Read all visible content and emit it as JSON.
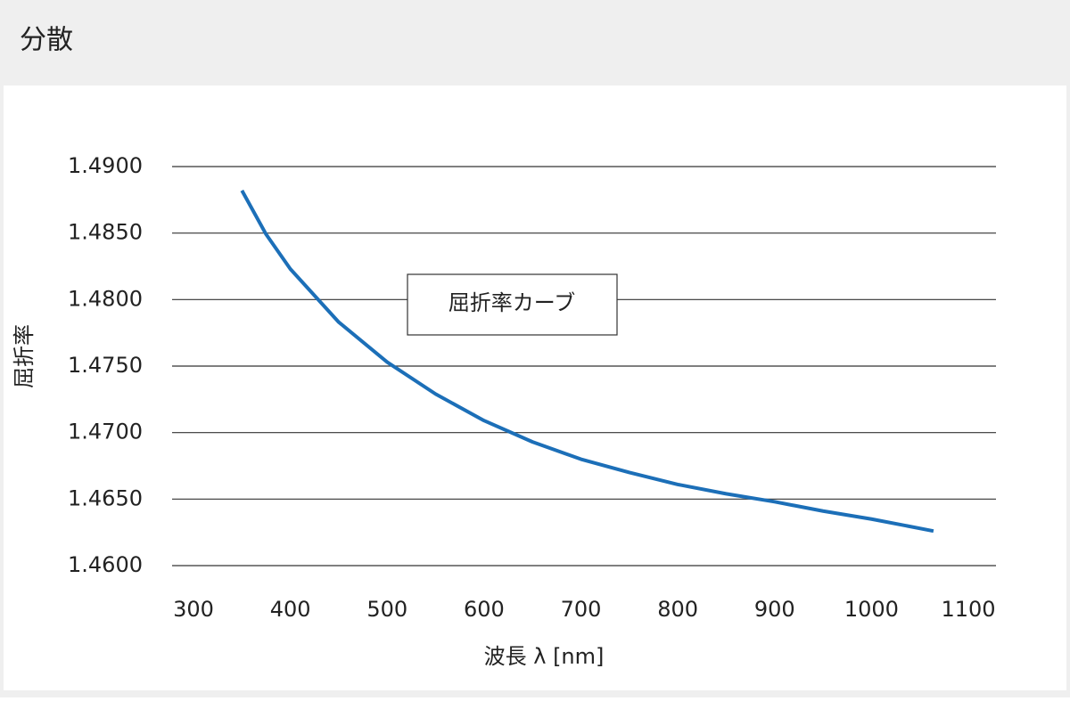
{
  "chart_data": {
    "type": "line",
    "title": "分散",
    "annotation": "屈折率カーブ",
    "x_label": "波長 λ [nm]",
    "y_label": "屈折率",
    "x": [
      350,
      375,
      400,
      450,
      500,
      550,
      600,
      650,
      700,
      750,
      800,
      850,
      900,
      950,
      1000,
      1064
    ],
    "series": [
      {
        "name": "屈折率カーブ",
        "color": "#1c6fb8",
        "values": [
          1.4882,
          1.4849,
          1.4823,
          1.4783,
          1.4753,
          1.4729,
          1.4709,
          1.4693,
          1.468,
          1.467,
          1.4661,
          1.4654,
          1.4648,
          1.4641,
          1.4635,
          1.4626
        ]
      }
    ],
    "xlim": [
      300,
      1100
    ],
    "xticks": [
      300,
      400,
      500,
      600,
      700,
      800,
      900,
      1000,
      1100
    ],
    "ylim": [
      1.46,
      1.49
    ],
    "yticks": [
      {
        "value": 1.46,
        "label": "1.4600"
      },
      {
        "value": 1.465,
        "label": "1.4650"
      },
      {
        "value": 1.47,
        "label": "1.4700"
      },
      {
        "value": 1.475,
        "label": "1.4750"
      },
      {
        "value": 1.48,
        "label": "1.4800"
      },
      {
        "value": 1.485,
        "label": "1.4850"
      },
      {
        "value": 1.49,
        "label": "1.4900"
      }
    ],
    "grid": true
  }
}
